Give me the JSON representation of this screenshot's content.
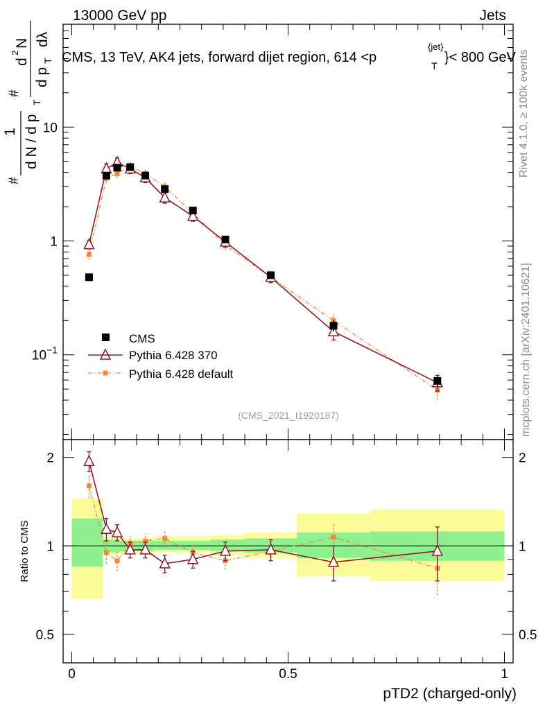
{
  "header": {
    "energy": "13000 GeV pp",
    "category": "Jets"
  },
  "side_labels": {
    "rivet": "Rivet 4.1.0, ≥ 100k events",
    "mcplots": "mcplots.cern.ch [arXiv:2401.10621]"
  },
  "colors": {
    "cms": "#000000",
    "pythia370": "#8b1a2b",
    "pythia_default": "#f28a3a",
    "band_inner": "#8ef08e",
    "band_outer": "#fbfb9a"
  },
  "chart_data": [
    {
      "type": "scatter",
      "panel": "main",
      "title": "CMS, 13 TeV, AK4 jets, forward dijet region, 614 <p_T^{jet}< 800 GeV",
      "title_parts": [
        "CMS, 13 TeV, AK4 jets, forward dijet region, 614 <p",
        "{jet}",
        "T",
        "}< 800 GeV"
      ],
      "ylabel_parts": [
        "#",
        "1",
        "d N / d p",
        "T",
        "#",
        "d",
        "2",
        "N",
        "d p",
        "T",
        "dλ"
      ],
      "xlim": [
        -0.02,
        1.02
      ],
      "ylim": [
        0.018,
        80
      ],
      "yscale": "log",
      "ytick_labels": [
        {
          "value": 0.1,
          "base": "10",
          "exp": "−1"
        },
        {
          "value": 1,
          "label": "1"
        },
        {
          "value": 10,
          "label": "10"
        }
      ],
      "reference": "(CMS_2021_I1920187)",
      "series": [
        {
          "name": "CMS",
          "marker": "square",
          "x": [
            0.04,
            0.08,
            0.105,
            0.135,
            0.17,
            0.215,
            0.28,
            0.355,
            0.46,
            0.605,
            0.845
          ],
          "y": [
            0.48,
            3.75,
            4.4,
            4.45,
            3.75,
            2.85,
            1.85,
            1.03,
            0.5,
            0.18,
            0.059
          ],
          "yerr": [
            0.02,
            0.15,
            0.18,
            0.18,
            0.15,
            0.12,
            0.08,
            0.05,
            0.03,
            0.02,
            0.007
          ]
        },
        {
          "name": "Pythia 6.428 370",
          "marker": "triangle",
          "x": [
            0.04,
            0.08,
            0.105,
            0.135,
            0.17,
            0.215,
            0.28,
            0.355,
            0.46,
            0.605,
            0.845
          ],
          "y": [
            0.93,
            4.3,
            4.9,
            4.3,
            3.6,
            2.4,
            1.65,
            0.98,
            0.48,
            0.16,
            0.057
          ],
          "yerr": [
            0.08,
            0.45,
            0.45,
            0.4,
            0.35,
            0.25,
            0.16,
            0.1,
            0.05,
            0.025,
            0.009
          ]
        },
        {
          "name": "Pythia 6.428 default",
          "marker": "small-square",
          "x": [
            0.04,
            0.08,
            0.105,
            0.135,
            0.17,
            0.215,
            0.28,
            0.355,
            0.46,
            0.605,
            0.845
          ],
          "y": [
            0.76,
            3.55,
            3.9,
            4.55,
            3.9,
            3.0,
            1.75,
            0.92,
            0.48,
            0.2,
            0.049
          ],
          "yerr": [
            0.08,
            0.35,
            0.35,
            0.4,
            0.35,
            0.28,
            0.16,
            0.09,
            0.05,
            0.03,
            0.009
          ]
        }
      ]
    },
    {
      "type": "scatter",
      "panel": "ratio",
      "ylabel": "Ratio to CMS",
      "xlabel": "pTD2 (charged-only)",
      "xlim": [
        -0.02,
        1.02
      ],
      "ylim": [
        0.4,
        2.3
      ],
      "yscale": "log",
      "ytick_labels": [
        {
          "value": 0.5,
          "label": "0.5"
        },
        {
          "value": 1,
          "label": "1"
        },
        {
          "value": 2,
          "label": "2"
        }
      ],
      "xtick_labels": [
        {
          "value": 0,
          "label": "0"
        },
        {
          "value": 0.5,
          "label": "0.5"
        },
        {
          "value": 1,
          "label": "1"
        }
      ],
      "bands": [
        {
          "x0": 0.0,
          "x1": 0.072,
          "inner": [
            0.85,
            1.24
          ],
          "outer": [
            0.66,
            1.45
          ]
        },
        {
          "x0": 0.072,
          "x1": 0.11,
          "inner": [
            0.95,
            1.05
          ],
          "outer": [
            0.93,
            1.07
          ]
        },
        {
          "x0": 0.11,
          "x1": 0.145,
          "inner": [
            0.96,
            1.04
          ],
          "outer": [
            0.94,
            1.06
          ]
        },
        {
          "x0": 0.145,
          "x1": 0.19,
          "inner": [
            0.96,
            1.04
          ],
          "outer": [
            0.94,
            1.06
          ]
        },
        {
          "x0": 0.19,
          "x1": 0.25,
          "inner": [
            0.97,
            1.04
          ],
          "outer": [
            0.95,
            1.08
          ]
        },
        {
          "x0": 0.25,
          "x1": 0.32,
          "inner": [
            0.97,
            1.04
          ],
          "outer": [
            0.95,
            1.08
          ]
        },
        {
          "x0": 0.32,
          "x1": 0.4,
          "inner": [
            0.96,
            1.05
          ],
          "outer": [
            0.93,
            1.09
          ]
        },
        {
          "x0": 0.4,
          "x1": 0.52,
          "inner": [
            0.95,
            1.06
          ],
          "outer": [
            0.91,
            1.11
          ]
        },
        {
          "x0": 0.52,
          "x1": 0.69,
          "inner": [
            0.91,
            1.11
          ],
          "outer": [
            0.79,
            1.29
          ]
        },
        {
          "x0": 0.69,
          "x1": 1.0,
          "inner": [
            0.89,
            1.12
          ],
          "outer": [
            0.76,
            1.33
          ]
        }
      ],
      "series": [
        {
          "name": "Pythia 6.428 370",
          "marker": "triangle",
          "x": [
            0.04,
            0.08,
            0.105,
            0.135,
            0.17,
            0.215,
            0.28,
            0.355,
            0.46,
            0.605,
            0.845
          ],
          "y": [
            1.94,
            1.14,
            1.11,
            0.97,
            0.97,
            0.87,
            0.9,
            0.96,
            0.97,
            0.88,
            0.96
          ],
          "yerr": [
            0.15,
            0.1,
            0.07,
            0.06,
            0.06,
            0.06,
            0.06,
            0.07,
            0.08,
            0.12,
            0.2
          ]
        },
        {
          "name": "Pythia 6.428 default",
          "marker": "small-square",
          "x": [
            0.04,
            0.08,
            0.105,
            0.135,
            0.17,
            0.215,
            0.28,
            0.355,
            0.46,
            0.605,
            0.845
          ],
          "y": [
            1.6,
            0.95,
            0.89,
            1.02,
            1.04,
            1.06,
            0.95,
            0.89,
            0.96,
            1.07,
            0.84
          ],
          "yerr": [
            0.15,
            0.08,
            0.07,
            0.06,
            0.06,
            0.07,
            0.06,
            0.06,
            0.07,
            0.13,
            0.16
          ]
        }
      ]
    }
  ]
}
